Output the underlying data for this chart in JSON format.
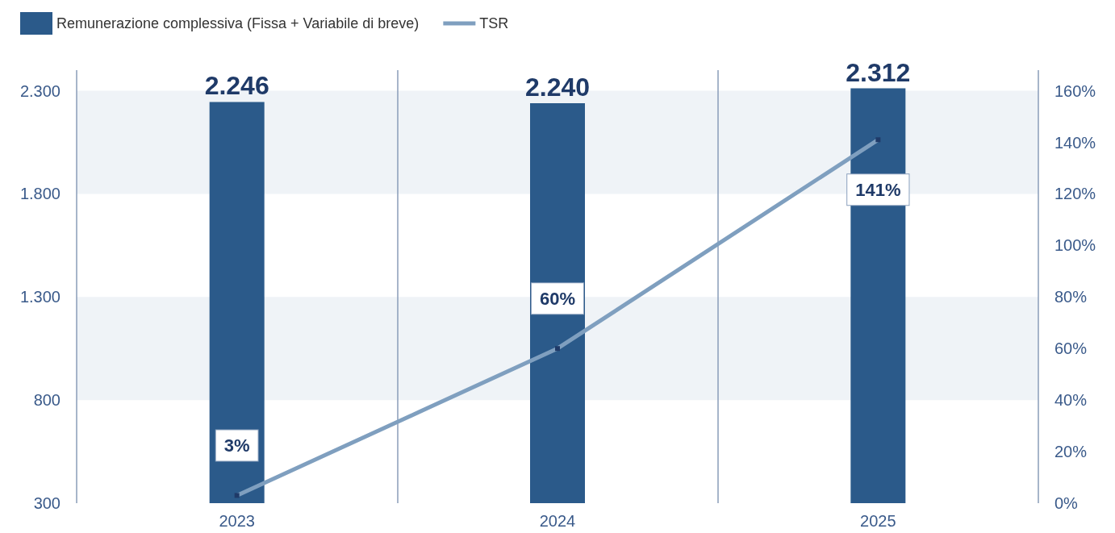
{
  "chart_data": {
    "type": "bar",
    "categories": [
      "2023",
      "2024",
      "2025"
    ],
    "series": [
      {
        "name": "Remunerazione complessiva (Fissa + Variabile di breve)",
        "color": "#2b5a8a",
        "values": [
          2246,
          2240,
          2312
        ],
        "value_labels": [
          "2.246",
          "2.240",
          "2.312"
        ]
      },
      {
        "name": "TSR",
        "type": "line",
        "axis": "y2",
        "color": "#7f9fbf",
        "values": [
          3,
          60,
          141
        ],
        "value_labels": [
          "3%",
          "60%",
          "141%"
        ],
        "marker": "square"
      }
    ],
    "ylim": [
      300,
      2400
    ],
    "yticks": [
      {
        "value": 300,
        "label": "300"
      },
      {
        "value": 800,
        "label": "800"
      },
      {
        "value": 1300,
        "label": "1.300"
      },
      {
        "value": 1800,
        "label": "1.800"
      },
      {
        "value": 2300,
        "label": "2.300"
      }
    ],
    "y2lim": [
      0,
      168
    ],
    "y2ticks": [
      {
        "value": 0,
        "label": "0%"
      },
      {
        "value": 20,
        "label": "20%"
      },
      {
        "value": 40,
        "label": "40%"
      },
      {
        "value": 60,
        "label": "60%"
      },
      {
        "value": 80,
        "label": "80%"
      },
      {
        "value": 100,
        "label": "100%"
      },
      {
        "value": 120,
        "label": "120%"
      },
      {
        "value": 140,
        "label": "140%"
      },
      {
        "value": 160,
        "label": "160%"
      }
    ],
    "grid": true,
    "legend": "top left"
  }
}
